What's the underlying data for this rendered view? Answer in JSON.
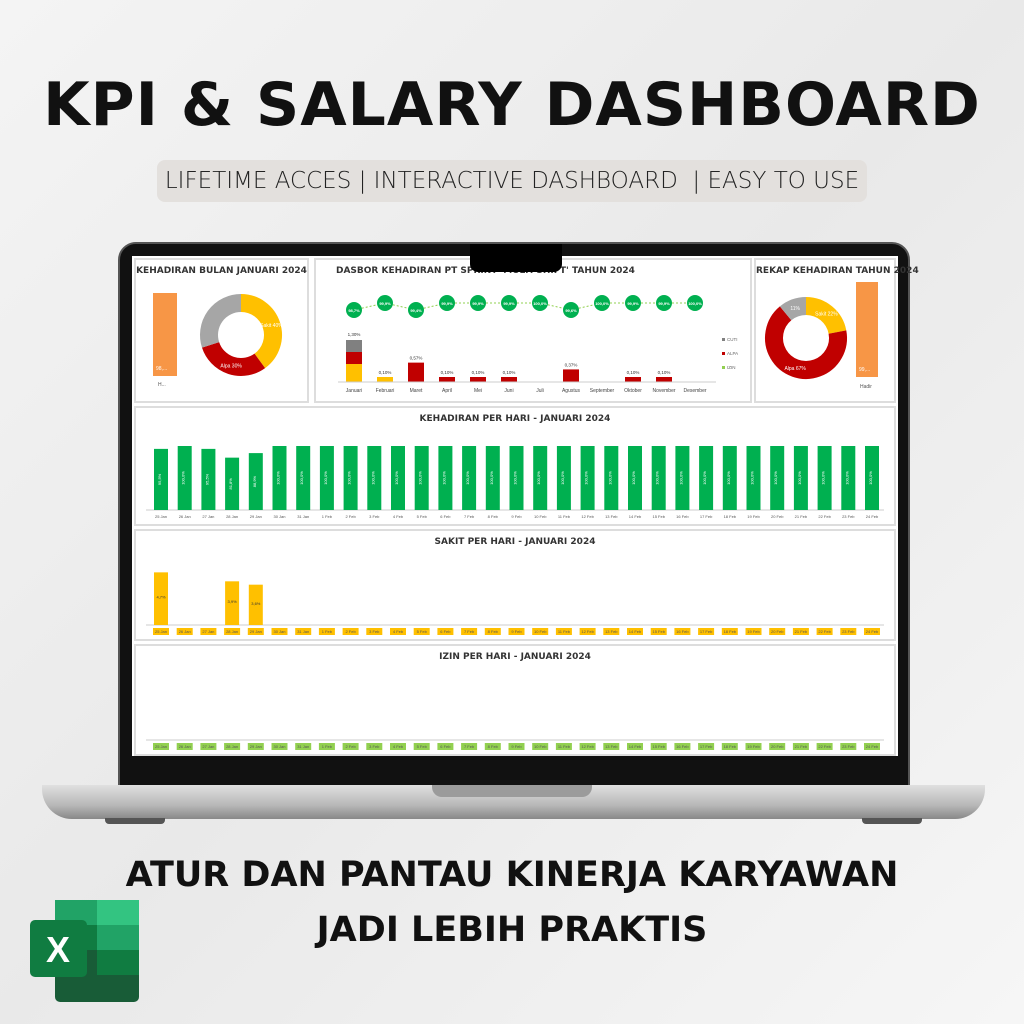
{
  "header": {
    "title": "KPI & SALARY DASHBOARD",
    "subtitle": "LIFETIME ACCES | INTERACTIVE DASHBOARD  | EASY TO USE"
  },
  "footer": {
    "line1": "ATUR DAN PANTAU KINERJA KARYAWAN",
    "line2": "JADI LEBIH PRAKTIS",
    "logo": "X"
  },
  "colors": {
    "hadir": "#00b050",
    "sakit": "#ffc000",
    "alpa": "#c00000",
    "cuti": "#a6a6a6",
    "bar": "#f79646"
  },
  "dashboard": {
    "panel1": {
      "title": "KEHADIRAN BULAN JANUARI 2024",
      "bar_label": "98,...",
      "legend": "H...",
      "donut": [
        {
          "label": "Sakit 40%",
          "value": 40,
          "color": "#ffc000"
        },
        {
          "label": "Alpa 30%",
          "value": 30,
          "color": "#c00000"
        },
        {
          "label": "",
          "value": 30,
          "color": "#a6a6a6"
        }
      ]
    },
    "panel2": {
      "title": "DASBOR KEHADIRAN PT SPRINT 'MULTI SHIFT' TAHUN 2024",
      "months": [
        "Januari",
        "Februari",
        "Maret",
        "April",
        "Mei",
        "Juni",
        "Juli",
        "Agustus",
        "September",
        "Oktober",
        "November",
        "Desember"
      ],
      "hadir": [
        "98,7%",
        "99,9%",
        "99,4%",
        "99,9%",
        "99,9%",
        "99,9%",
        "100,0%",
        "99,6%",
        "100,0%",
        "99,9%",
        "99,9%",
        "100,0%"
      ],
      "hadir_values": [
        98.7,
        99.9,
        99.4,
        99.9,
        99.9,
        99.9,
        100,
        99.6,
        100,
        99.9,
        99.9,
        100
      ],
      "absence_labels": [
        "1,30%",
        "0,10%",
        "0,57%",
        "0,10%",
        "0,10%",
        "0,10%",
        "",
        "0,37%",
        "",
        "0,10%",
        "0,10%",
        ""
      ],
      "absence_values": [
        1.3,
        0.1,
        0.57,
        0.1,
        0.1,
        0.1,
        0,
        0.37,
        0,
        0.1,
        0.1,
        0
      ],
      "legend": [
        "CUTI",
        "ALPA",
        "IZIN"
      ]
    },
    "panel3": {
      "title": "REKAP KEHADIRAN TAHUN 2024",
      "bar_label": "99,...",
      "legend": "Hadir",
      "donut": [
        {
          "label": "Sakit 22%",
          "value": 22,
          "color": "#ffc000"
        },
        {
          "label": "Alpa 67%",
          "value": 67,
          "color": "#c00000"
        },
        {
          "label": "11%",
          "value": 11,
          "color": "#a6a6a6"
        }
      ]
    },
    "days": [
      "25 Jan",
      "26 Jan",
      "27 Jan",
      "28 Jan",
      "29 Jan",
      "30 Jan",
      "31 Jan",
      "1 Feb",
      "2 Feb",
      "3 Feb",
      "4 Feb",
      "5 Feb",
      "6 Feb",
      "7 Feb",
      "8 Feb",
      "9 Feb",
      "10 Feb",
      "11 Feb",
      "12 Feb",
      "13 Feb",
      "14 Feb",
      "15 Feb",
      "16 Feb",
      "17 Feb",
      "18 Feb",
      "19 Feb",
      "20 Feb",
      "21 Feb",
      "22 Feb",
      "23 Feb",
      "24 Feb"
    ],
    "kehadiran": {
      "title": "KEHADIRAN PER HARI - JANUARI 2024",
      "values": [
        95.5,
        100,
        95.5,
        81.8,
        88.9,
        100,
        100,
        100,
        100,
        100,
        100,
        100,
        100,
        100,
        100,
        100,
        100,
        100,
        100,
        100,
        100,
        100,
        100,
        100,
        100,
        100,
        100,
        100,
        100,
        100,
        100
      ]
    },
    "sakit": {
      "title": "SAKIT PER HARI - JANUARI 2024",
      "values": [
        4.7,
        0,
        0,
        3.9,
        3.6,
        0,
        0,
        0,
        0,
        0,
        0,
        0,
        0,
        0,
        0,
        0,
        0,
        0,
        0,
        0,
        0,
        0,
        0,
        0,
        0,
        0,
        0,
        0,
        0,
        0,
        0
      ],
      "labels": [
        "4,7%",
        "",
        "",
        "3,9%",
        "3,6%"
      ]
    },
    "izin": {
      "title": "IZIN PER HARI - JANUARI 2024"
    }
  }
}
